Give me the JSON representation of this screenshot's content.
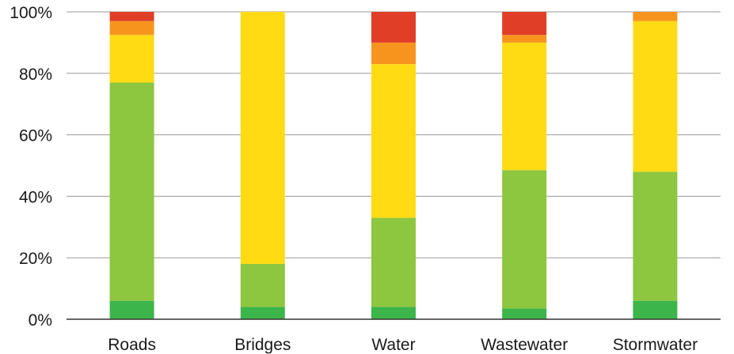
{
  "chart_data": {
    "type": "bar",
    "stacked": true,
    "categories": [
      "Roads",
      "Bridges",
      "Water",
      "Wastewater",
      "Stormwater"
    ],
    "series": [
      {
        "color": "#3cb54a",
        "values": [
          6,
          4,
          4,
          3.5,
          6
        ]
      },
      {
        "color": "#8dc63f",
        "values": [
          71,
          14,
          29,
          45,
          42
        ]
      },
      {
        "color": "#ffdb14",
        "values": [
          15.5,
          82,
          50,
          41.5,
          49
        ]
      },
      {
        "color": "#f7941d",
        "values": [
          4.5,
          0,
          7,
          2.5,
          3
        ]
      },
      {
        "color": "#e03e26",
        "values": [
          3,
          0,
          10,
          7.5,
          0
        ]
      }
    ],
    "ylim": [
      0,
      100
    ],
    "yticks": [
      "0%",
      "20%",
      "40%",
      "60%",
      "80%",
      "100%"
    ],
    "grid": true,
    "legend": "none"
  }
}
